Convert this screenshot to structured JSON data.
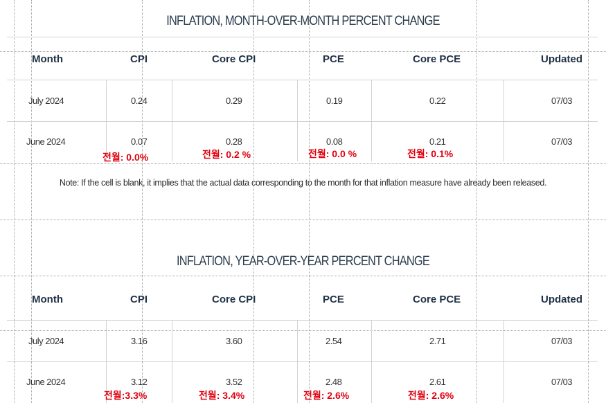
{
  "tables": [
    {
      "title": "INFLATION, MONTH-OVER-MONTH PERCENT CHANGE",
      "headers": [
        "Month",
        "CPI",
        "Core CPI",
        "PCE",
        "Core PCE",
        "Updated"
      ],
      "rows": [
        [
          "July 2024",
          "0.24",
          "0.29",
          "0.19",
          "0.22",
          "07/03"
        ],
        [
          "June 2024",
          "0.07",
          "0.28",
          "0.08",
          "0.21",
          "07/03"
        ]
      ],
      "annotations": [
        "전월: 0.0%",
        "전월: 0.2 %",
        "전월: 0.0 %",
        "전월: 0.1%"
      ]
    },
    {
      "title": "INFLATION, YEAR-OVER-YEAR PERCENT CHANGE",
      "headers": [
        "Month",
        "CPI",
        "Core CPI",
        "PCE",
        "Core PCE",
        "Updated"
      ],
      "rows": [
        [
          "July 2024",
          "3.16",
          "3.60",
          "2.54",
          "2.71",
          "07/03"
        ],
        [
          "June 2024",
          "3.12",
          "3.52",
          "2.48",
          "2.61",
          "07/03"
        ]
      ],
      "annotations": [
        "전월:3.3%",
        "전월: 3.4%",
        "전월: 2.6%",
        "전월: 2.6%"
      ]
    }
  ],
  "note": "Note: If the cell is blank, it implies that the actual data corresponding to the month for that inflation measure have already been released.",
  "colors": {
    "header_text": "#1f3044",
    "title_text": "#2b3d4f",
    "annotation": "#e0000e",
    "rule": "#d2d2d2"
  }
}
